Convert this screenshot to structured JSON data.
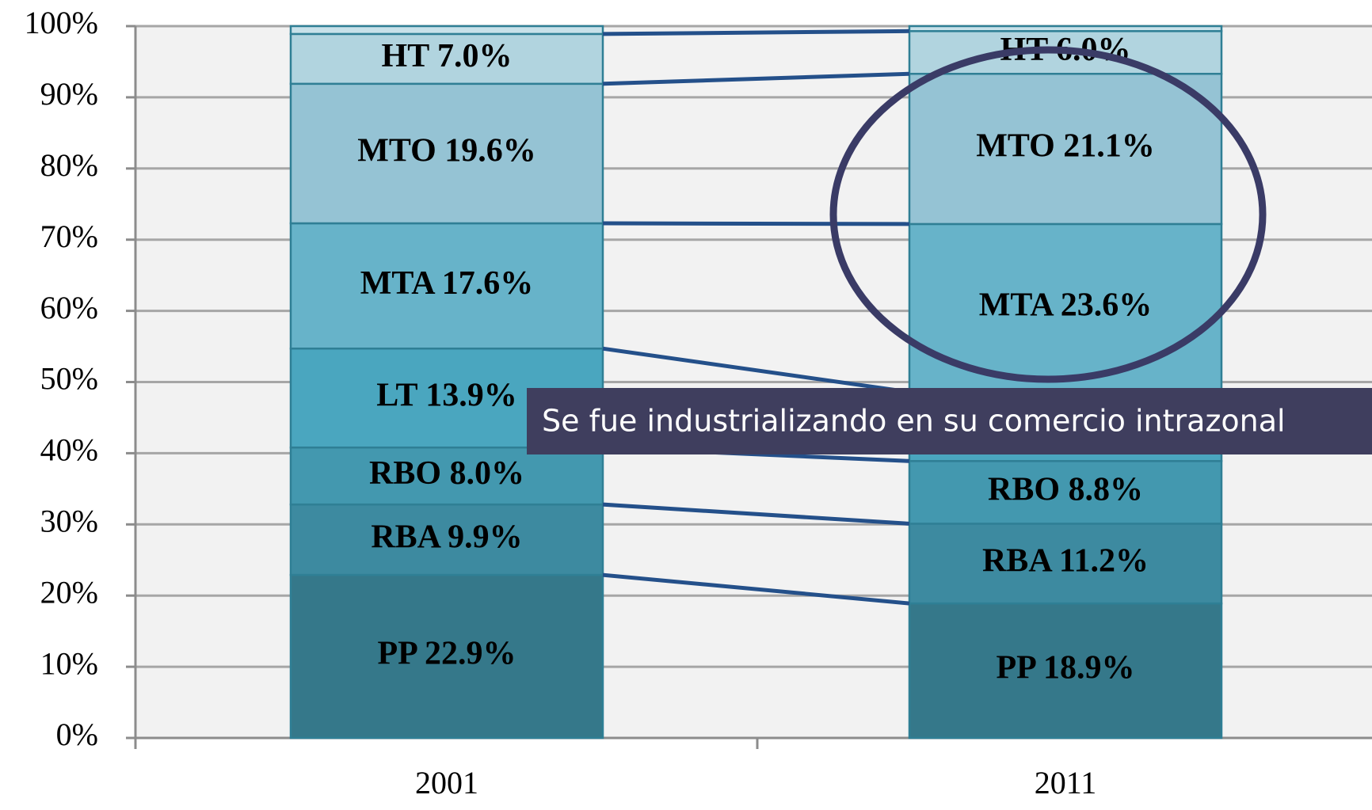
{
  "chart_data": {
    "type": "stacked_bar",
    "categories": [
      "2001",
      "2011"
    ],
    "series": [
      {
        "name": "PP",
        "color": "#35788a",
        "values": [
          22.9,
          18.9
        ],
        "value_labels": [
          "PP 22.9%",
          "PP 18.9%"
        ]
      },
      {
        "name": "RBA",
        "color": "#3d8aa0",
        "values": [
          9.9,
          11.2
        ],
        "value_labels": [
          "RBA 9.9%",
          "RBA 11.2%"
        ]
      },
      {
        "name": "RBO",
        "color": "#4398af",
        "values": [
          8.0,
          8.8
        ],
        "value_labels": [
          "RBO 8.0%",
          "RBO 8.8%"
        ]
      },
      {
        "name": "LT",
        "color": "#4aa6bf",
        "values": [
          13.9,
          9.7
        ],
        "value_labels": [
          "LT 13.9%",
          null
        ]
      },
      {
        "name": "MTA",
        "color": "#67b3c9",
        "values": [
          17.6,
          23.6
        ],
        "value_labels": [
          "MTA 17.6%",
          "MTA 23.6%"
        ]
      },
      {
        "name": "MTO",
        "color": "#95c3d4",
        "values": [
          19.6,
          21.1
        ],
        "value_labels": [
          "MTO 19.6%",
          "MTO 21.1%"
        ]
      },
      {
        "name": "HT",
        "color": "#b1d4df",
        "values": [
          7.0,
          6.0
        ],
        "value_labels": [
          "HT 7.0%",
          "HT 6.0%"
        ]
      },
      {
        "color": "#c8e1e9",
        "values": [
          1.1,
          0.7
        ]
      }
    ],
    "ylim": [
      0,
      100
    ],
    "yticks": [
      {
        "value": 0,
        "label": "0%"
      },
      {
        "value": 10,
        "label": "10%"
      },
      {
        "value": 20,
        "label": "20%"
      },
      {
        "value": 30,
        "label": "30%"
      },
      {
        "value": 40,
        "label": "40%"
      },
      {
        "value": 50,
        "label": "50%"
      },
      {
        "value": 60,
        "label": "60%"
      },
      {
        "value": 70,
        "label": "70%"
      },
      {
        "value": 80,
        "label": "80%"
      },
      {
        "value": 90,
        "label": "90%"
      },
      {
        "value": 100,
        "label": "100%"
      }
    ],
    "grid": true,
    "annotation": "Se fue industrializando en su comercio intrazonal"
  }
}
